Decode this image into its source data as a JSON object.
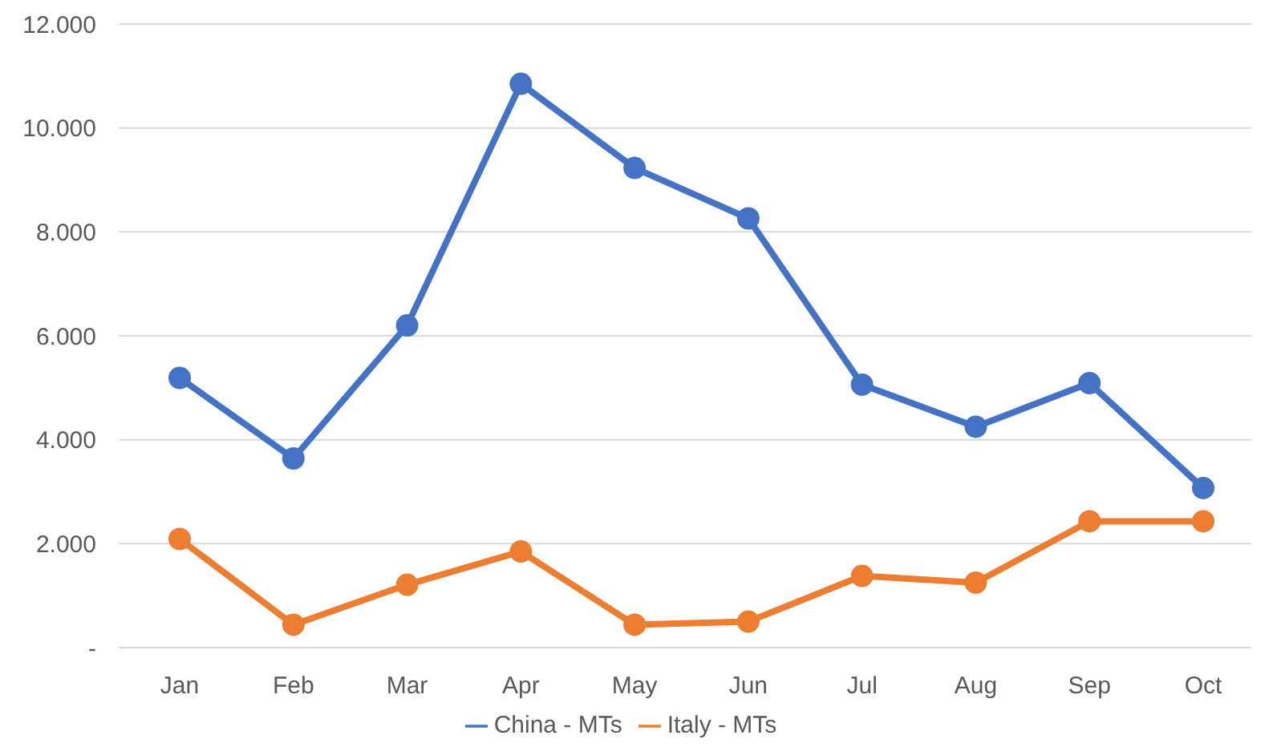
{
  "chart_data": {
    "type": "line",
    "categories": [
      "Jan",
      "Feb",
      "Mar",
      "Apr",
      "May",
      "Jun",
      "Jul",
      "Aug",
      "Sep",
      "Oct"
    ],
    "series": [
      {
        "name": "China - MTs",
        "color": "#4472c4",
        "values": [
          5190,
          3640,
          6200,
          10850,
          9230,
          8260,
          5060,
          4250,
          5090,
          3070
        ]
      },
      {
        "name": "Italy - MTs",
        "color": "#ed7d31",
        "values": [
          2090,
          440,
          1210,
          1850,
          440,
          500,
          1380,
          1250,
          2430,
          2430
        ]
      }
    ],
    "ylim": [
      0,
      12000
    ],
    "yticks": [
      {
        "value": 0,
        "label": "-"
      },
      {
        "value": 2000,
        "label": "2.000"
      },
      {
        "value": 4000,
        "label": "4.000"
      },
      {
        "value": 6000,
        "label": "6.000"
      },
      {
        "value": 8000,
        "label": "8.000"
      },
      {
        "value": 10000,
        "label": "10.000"
      },
      {
        "value": 12000,
        "label": "12.000"
      }
    ],
    "grid": "y",
    "legend": "bottom",
    "marker": "circle",
    "line_style": "solid"
  }
}
